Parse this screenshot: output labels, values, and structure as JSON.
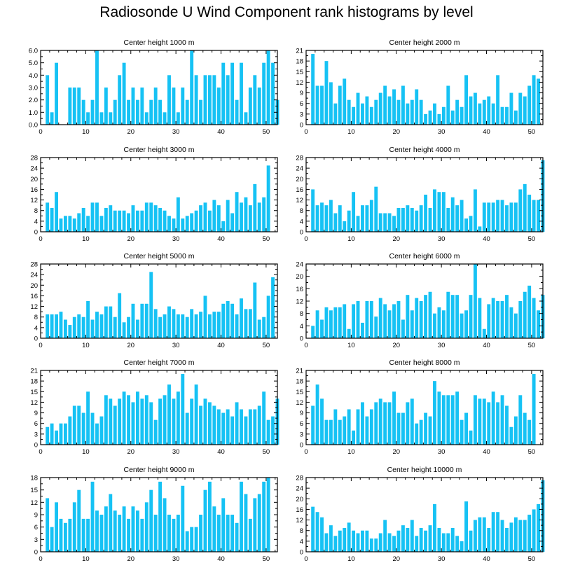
{
  "title": "Radiosonde U Wind Component rank histograms by level",
  "colors": {
    "bar": "#16c2f4",
    "axis": "#000000",
    "background": "#ffffff"
  },
  "chart_data": [
    {
      "type": "bar",
      "title": "Center height 1000 m",
      "xlim": [
        0,
        52.5
      ],
      "xticks": [
        0,
        10,
        20,
        30,
        40,
        50
      ],
      "ylim": [
        0,
        6
      ],
      "yticks": [
        "0.0",
        "1.0",
        "2.0",
        "3.0",
        "4.0",
        "5.0",
        "6.0"
      ],
      "ytick_values": [
        0,
        1,
        2,
        3,
        4,
        5,
        6
      ],
      "values": [
        0,
        4,
        1,
        5,
        0,
        0,
        3,
        3,
        3,
        2,
        1,
        2,
        6,
        1,
        3,
        1,
        2,
        4,
        5,
        2,
        3,
        2,
        3,
        1,
        2,
        3,
        2,
        1,
        4,
        3,
        1,
        3,
        2,
        6,
        4,
        2,
        4,
        4,
        4,
        3,
        5,
        4,
        5,
        2,
        5,
        1,
        3,
        4,
        3,
        5,
        6,
        5,
        2
      ]
    },
    {
      "type": "bar",
      "title": "Center height 2000 m",
      "xlim": [
        0,
        52.5
      ],
      "xticks": [
        0,
        10,
        20,
        30,
        40,
        50
      ],
      "ylim": [
        0,
        21
      ],
      "yticks": [
        "0",
        "3",
        "6",
        "9",
        "12",
        "15",
        "18",
        "21"
      ],
      "ytick_values": [
        0,
        3,
        6,
        9,
        12,
        15,
        18,
        21
      ],
      "values": [
        0,
        20,
        11,
        11,
        18,
        12,
        6,
        11,
        13,
        7,
        5,
        9,
        6,
        8,
        5,
        7,
        9,
        11,
        8,
        10,
        7,
        11,
        6,
        7,
        10,
        7,
        3,
        4,
        6,
        3,
        5,
        11,
        4,
        7,
        5,
        14,
        8,
        9,
        6,
        7,
        8,
        6,
        14,
        5,
        5,
        9,
        4,
        9,
        8,
        11,
        14,
        13,
        0
      ]
    },
    {
      "type": "bar",
      "title": "Center height 3000 m",
      "xlim": [
        0,
        52.5
      ],
      "xticks": [
        0,
        10,
        20,
        30,
        40,
        50
      ],
      "ylim": [
        0,
        28
      ],
      "yticks": [
        "0",
        "4",
        "8",
        "12",
        "16",
        "20",
        "24",
        "28"
      ],
      "ytick_values": [
        0,
        4,
        8,
        12,
        16,
        20,
        24,
        28
      ],
      "values": [
        0,
        11,
        9,
        15,
        5,
        6,
        6,
        5,
        7,
        9,
        6,
        11,
        11,
        6,
        9,
        10,
        8,
        8,
        8,
        7,
        10,
        8,
        8,
        11,
        11,
        10,
        9,
        8,
        6,
        5,
        13,
        5,
        6,
        7,
        8,
        10,
        11,
        8,
        12,
        10,
        4,
        12,
        7,
        15,
        11,
        13,
        10,
        18,
        11,
        13,
        25,
        0,
        0
      ]
    },
    {
      "type": "bar",
      "title": "Center height 4000 m",
      "xlim": [
        0,
        52.5
      ],
      "xticks": [
        0,
        10,
        20,
        30,
        40,
        50
      ],
      "ylim": [
        0,
        28
      ],
      "yticks": [
        "0",
        "4",
        "8",
        "12",
        "16",
        "20",
        "24",
        "28"
      ],
      "ytick_values": [
        0,
        4,
        8,
        12,
        16,
        20,
        24,
        28
      ],
      "values": [
        0,
        16,
        10,
        11,
        10,
        12,
        7,
        10,
        4,
        8,
        15,
        6,
        10,
        10,
        12,
        17,
        7,
        7,
        7,
        6,
        9,
        9,
        10,
        9,
        8,
        10,
        14,
        9,
        16,
        15,
        15,
        9,
        13,
        10,
        12,
        5,
        6,
        16,
        2,
        11,
        11,
        11,
        12,
        12,
        10,
        11,
        11,
        16,
        18,
        14,
        12,
        12,
        27
      ]
    },
    {
      "type": "bar",
      "title": "Center height 5000 m",
      "xlim": [
        0,
        52.5
      ],
      "xticks": [
        0,
        10,
        20,
        30,
        40,
        50
      ],
      "ylim": [
        0,
        28
      ],
      "yticks": [
        "0",
        "4",
        "8",
        "12",
        "16",
        "20",
        "24",
        "28"
      ],
      "ytick_values": [
        0,
        4,
        8,
        12,
        16,
        20,
        24,
        28
      ],
      "values": [
        0,
        9,
        9,
        9,
        10,
        7,
        5,
        8,
        9,
        8,
        14,
        7,
        10,
        9,
        12,
        12,
        8,
        17,
        6,
        8,
        13,
        7,
        13,
        13,
        25,
        11,
        8,
        9,
        12,
        11,
        9,
        9,
        8,
        11,
        9,
        10,
        16,
        9,
        10,
        10,
        13,
        14,
        13,
        9,
        15,
        11,
        11,
        21,
        7,
        8,
        16,
        23,
        0
      ]
    },
    {
      "type": "bar",
      "title": "Center height 6000 m",
      "xlim": [
        0,
        52.5
      ],
      "xticks": [
        0,
        10,
        20,
        30,
        40,
        50
      ],
      "ylim": [
        0,
        24
      ],
      "yticks": [
        "0",
        "4",
        "8",
        "12",
        "16",
        "20",
        "24"
      ],
      "ytick_values": [
        0,
        4,
        8,
        12,
        16,
        20,
        24
      ],
      "values": [
        0,
        4,
        9,
        6,
        10,
        9,
        10,
        10,
        11,
        3,
        11,
        12,
        5,
        12,
        12,
        7,
        13,
        11,
        9,
        11,
        12,
        6,
        14,
        9,
        13,
        12,
        14,
        15,
        8,
        10,
        9,
        15,
        14,
        14,
        8,
        9,
        14,
        24,
        13,
        3,
        11,
        13,
        12,
        12,
        14,
        10,
        8,
        12,
        15,
        17,
        13,
        9,
        14
      ]
    },
    {
      "type": "bar",
      "title": "Center height 7000 m",
      "xlim": [
        0,
        52.5
      ],
      "xticks": [
        0,
        10,
        20,
        30,
        40,
        50
      ],
      "ylim": [
        0,
        21
      ],
      "yticks": [
        "0",
        "3",
        "6",
        "9",
        "12",
        "15",
        "18",
        "21"
      ],
      "ytick_values": [
        0,
        3,
        6,
        9,
        12,
        15,
        18,
        21
      ],
      "values": [
        0,
        5,
        6,
        4,
        6,
        6,
        8,
        11,
        11,
        9,
        15,
        9,
        6,
        8,
        14,
        13,
        11,
        13,
        15,
        14,
        12,
        15,
        13,
        14,
        12,
        7,
        13,
        14,
        17,
        13,
        15,
        20,
        9,
        13,
        17,
        11,
        13,
        12,
        11,
        10,
        9,
        10,
        8,
        12,
        10,
        8,
        10,
        10,
        11,
        15,
        7,
        8,
        13
      ]
    },
    {
      "type": "bar",
      "title": "Center height 8000 m",
      "xlim": [
        0,
        52.5
      ],
      "xticks": [
        0,
        10,
        20,
        30,
        40,
        50
      ],
      "ylim": [
        0,
        21
      ],
      "yticks": [
        "0",
        "3",
        "6",
        "9",
        "12",
        "15",
        "18",
        "21"
      ],
      "ytick_values": [
        0,
        3,
        6,
        9,
        12,
        15,
        18,
        21
      ],
      "values": [
        0,
        11,
        17,
        13,
        7,
        7,
        10,
        7,
        8,
        10,
        4,
        10,
        12,
        8,
        10,
        12,
        13,
        12,
        12,
        15,
        9,
        9,
        12,
        13,
        6,
        7,
        9,
        8,
        18,
        15,
        14,
        14,
        14,
        15,
        7,
        9,
        4,
        14,
        13,
        13,
        12,
        15,
        12,
        14,
        11,
        5,
        8,
        14,
        9,
        7,
        20,
        0,
        0
      ]
    },
    {
      "type": "bar",
      "title": "Center height 9000 m",
      "xlim": [
        0,
        52.5
      ],
      "xticks": [
        0,
        10,
        20,
        30,
        40,
        50
      ],
      "ylim": [
        0,
        18
      ],
      "yticks": [
        "0",
        "3",
        "6",
        "9",
        "12",
        "15",
        "18"
      ],
      "ytick_values": [
        0,
        3,
        6,
        9,
        12,
        15,
        18
      ],
      "values": [
        0,
        13,
        6,
        12,
        8,
        7,
        8,
        12,
        15,
        8,
        8,
        17,
        10,
        9,
        11,
        14,
        10,
        9,
        11,
        8,
        11,
        10,
        8,
        12,
        15,
        9,
        17,
        13,
        9,
        8,
        9,
        16,
        5,
        6,
        6,
        9,
        15,
        17,
        11,
        9,
        13,
        9,
        9,
        7,
        17,
        14,
        8,
        13,
        14,
        17,
        18,
        0,
        0
      ]
    },
    {
      "type": "bar",
      "title": "Center height 10000 m",
      "xlim": [
        0,
        52.5
      ],
      "xticks": [
        0,
        10,
        20,
        30,
        40,
        50
      ],
      "ylim": [
        0,
        28
      ],
      "yticks": [
        "0",
        "4",
        "8",
        "12",
        "16",
        "20",
        "24",
        "28"
      ],
      "ytick_values": [
        0,
        4,
        8,
        12,
        16,
        20,
        24,
        28
      ],
      "values": [
        0,
        17,
        15,
        13,
        7,
        10,
        6,
        8,
        9,
        11,
        8,
        7,
        8,
        8,
        5,
        5,
        7,
        12,
        7,
        6,
        8,
        10,
        9,
        12,
        6,
        9,
        8,
        10,
        18,
        9,
        7,
        7,
        9,
        6,
        4,
        19,
        8,
        12,
        13,
        13,
        9,
        15,
        15,
        12,
        9,
        11,
        13,
        12,
        12,
        14,
        16,
        18,
        27
      ]
    }
  ]
}
